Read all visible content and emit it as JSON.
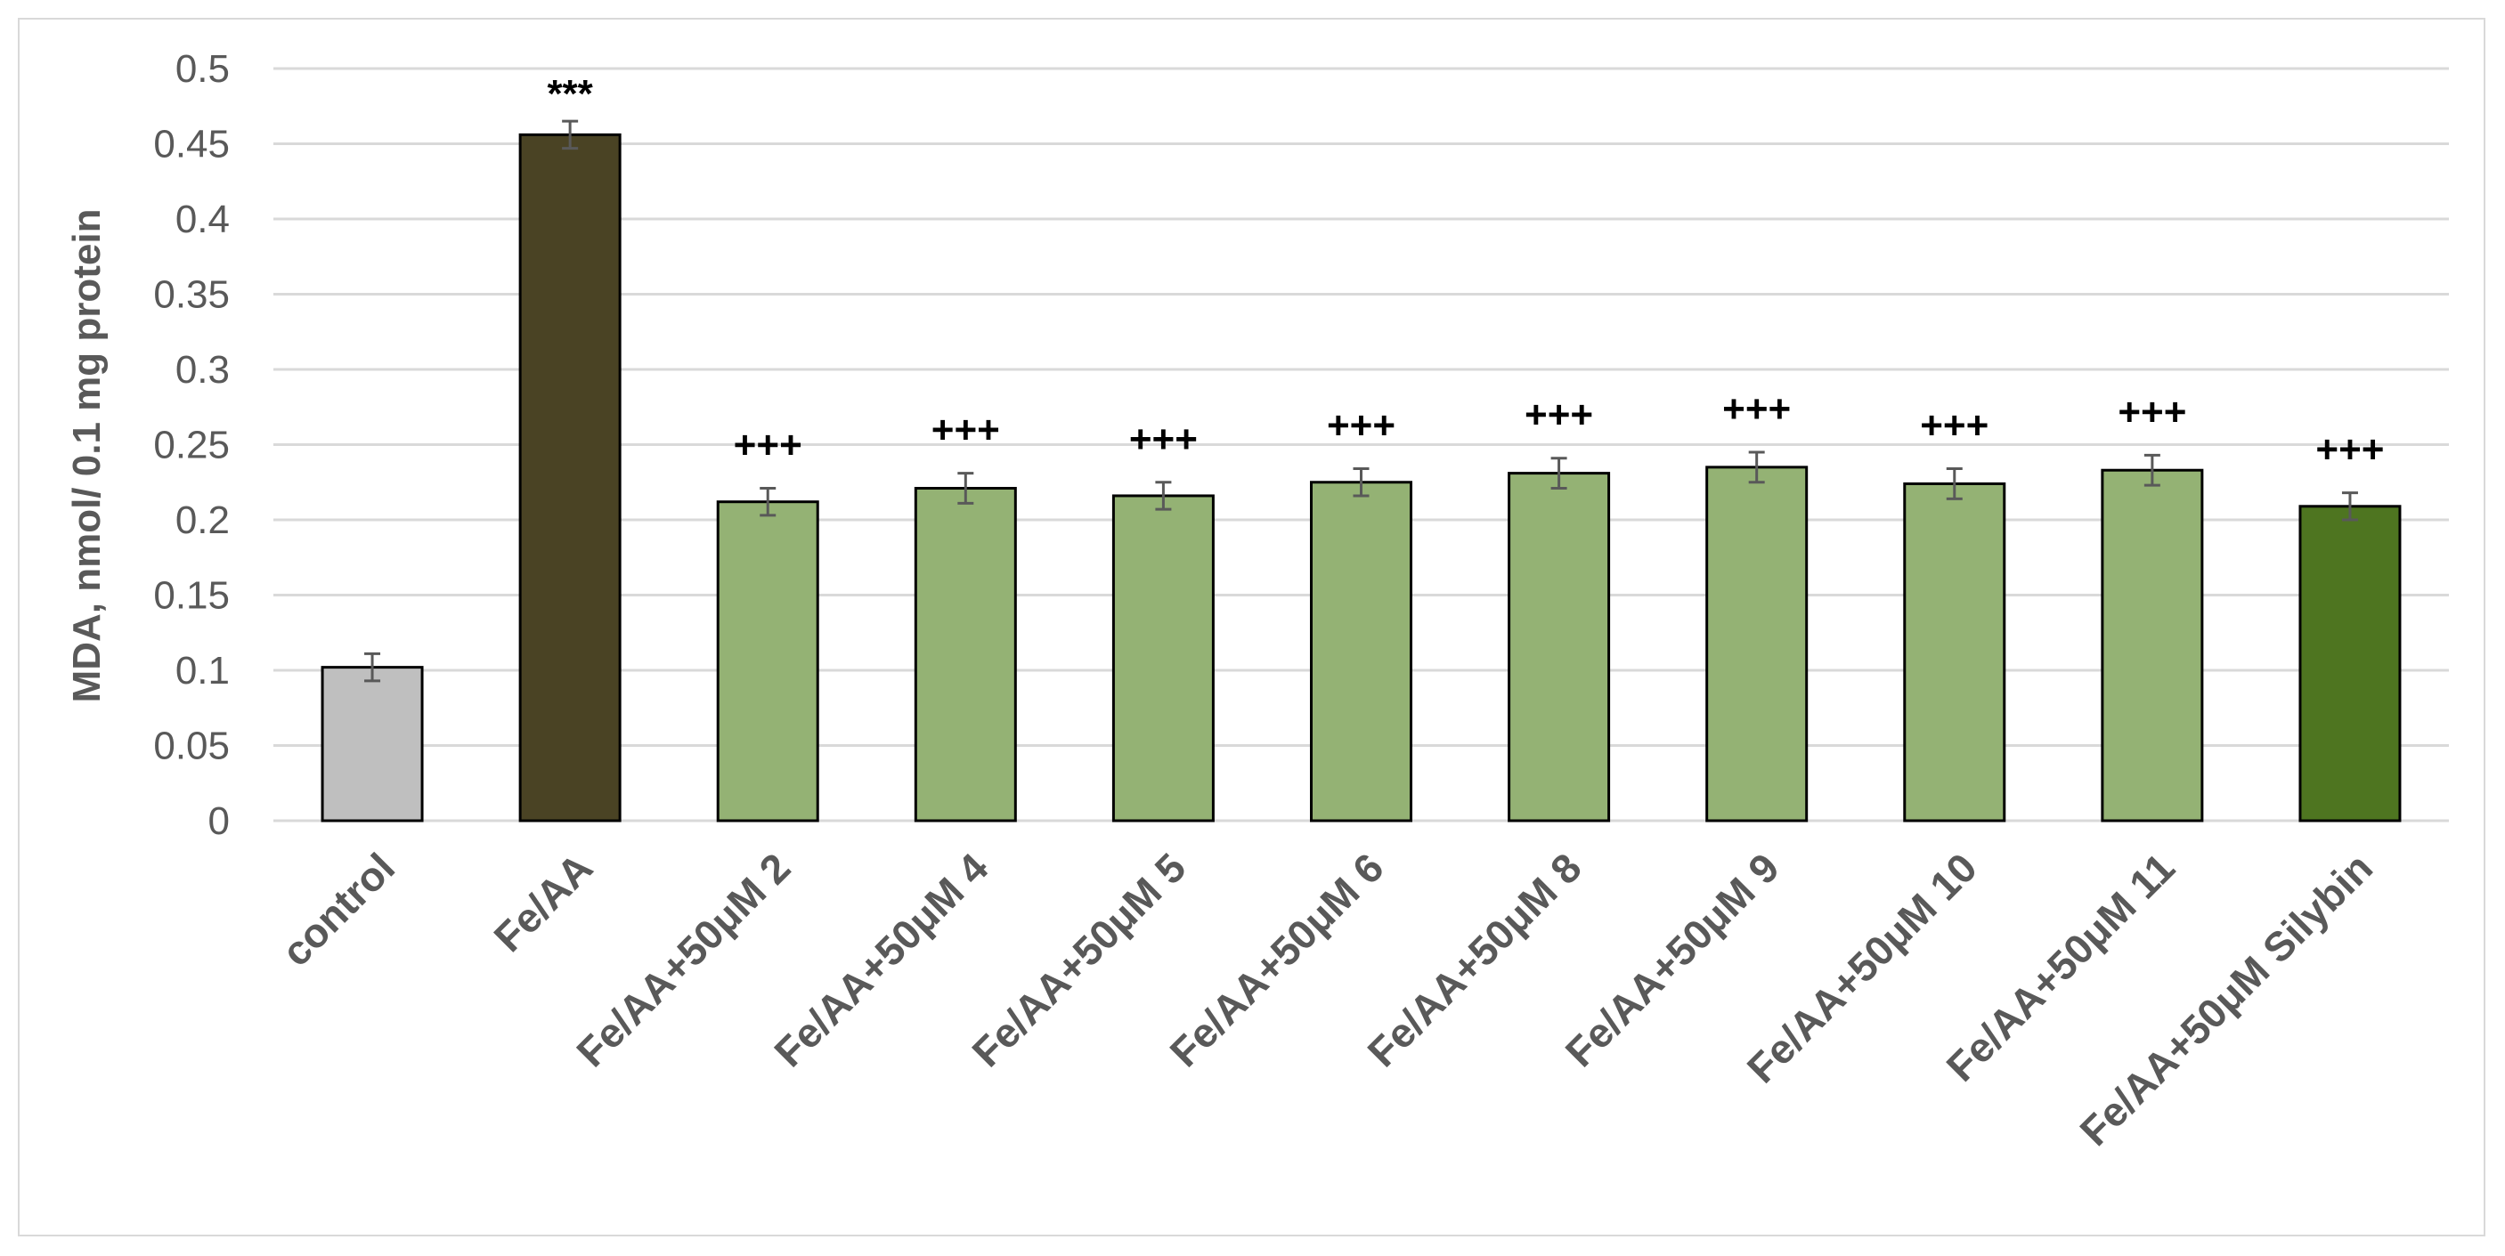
{
  "chart_data": {
    "type": "bar",
    "title": "",
    "xlabel": "",
    "ylabel": "MDA, nmol/ 0.1 mg protein",
    "ylim": [
      0,
      0.5
    ],
    "ytick_step": 0.05,
    "yticks": [
      "0",
      "0.05",
      "0.1",
      "0.15",
      "0.2",
      "0.25",
      "0.3",
      "0.35",
      "0.4",
      "0.45",
      "0.5"
    ],
    "grid": true,
    "legend": false,
    "categories": [
      "control",
      "Fe/AA",
      "Fe/AA+50μM 2",
      "Fe/AA+50μM 4",
      "Fe/AA+50μM 5",
      "Fe/AA+50μM 6",
      "Fe/AA+50μM 8",
      "Fe/AA+50μM 9",
      "Fe/AA+50μM 10",
      "Fe/AA+50μM 11",
      "Fe/AA+50μM Silybin"
    ],
    "values": [
      0.102,
      0.456,
      0.212,
      0.221,
      0.216,
      0.225,
      0.231,
      0.235,
      0.224,
      0.233,
      0.209
    ],
    "errors": [
      0.009,
      0.009,
      0.009,
      0.01,
      0.009,
      0.009,
      0.01,
      0.01,
      0.01,
      0.01,
      0.009
    ],
    "annotations": [
      "",
      "***",
      "+++",
      "+++",
      "+++",
      "+++",
      "+++",
      "+++",
      "+++",
      "+++",
      "+++"
    ],
    "bar_colors": [
      "#bfbfbf",
      "#4a4324",
      "#94b274",
      "#94b274",
      "#94b274",
      "#94b274",
      "#94b274",
      "#94b274",
      "#94b274",
      "#94b274",
      "#4e7520"
    ],
    "colors": {
      "grid": "#d9d9d9",
      "axis_text": "#595959",
      "bar_outline": "#000000",
      "error_bar": "#595959",
      "annotation": "#000000"
    }
  }
}
